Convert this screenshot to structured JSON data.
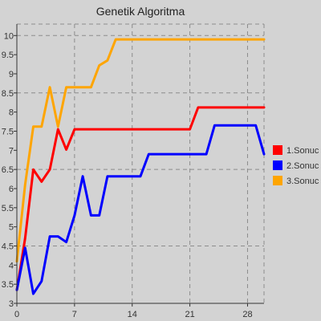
{
  "chart_data": {
    "type": "line",
    "title": "Genetik Algoritma",
    "xlabel": "",
    "ylabel": "",
    "xlim": [
      0,
      30
    ],
    "ylim": [
      3,
      10.3
    ],
    "x_ticks": [
      0,
      7,
      14,
      21,
      28
    ],
    "y_ticks": [
      3,
      3.5,
      4,
      4.5,
      5,
      5.5,
      6,
      6.5,
      7,
      7.5,
      8,
      8.5,
      9,
      9.5,
      10
    ],
    "y_tick_labels": [
      "3",
      "3.5",
      "4",
      "4.5",
      "5",
      "5.5",
      "6",
      "6.5",
      "7",
      "7.5",
      "8",
      "8.5",
      "9",
      "9.5",
      "10"
    ],
    "grid": true,
    "legend_position": "right",
    "series": [
      {
        "name": "1.Sonuc",
        "color": "#ff0000",
        "points": [
          [
            0,
            3.35
          ],
          [
            1,
            4.7
          ],
          [
            2,
            6.5
          ],
          [
            3,
            6.18
          ],
          [
            4,
            6.5
          ],
          [
            5,
            7.55
          ],
          [
            6,
            7.02
          ],
          [
            7,
            7.55
          ],
          [
            21,
            7.55
          ],
          [
            22,
            8.12
          ],
          [
            30,
            8.12
          ]
        ]
      },
      {
        "name": "2.Sonuc",
        "color": "#0000ff",
        "points": [
          [
            0,
            3.35
          ],
          [
            1,
            4.45
          ],
          [
            2,
            3.25
          ],
          [
            3,
            3.58
          ],
          [
            4,
            4.75
          ],
          [
            5,
            4.75
          ],
          [
            6,
            4.6
          ],
          [
            7,
            5.3
          ],
          [
            8,
            6.32
          ],
          [
            9,
            5.3
          ],
          [
            10,
            5.3
          ],
          [
            11,
            6.32
          ],
          [
            15,
            6.32
          ],
          [
            16,
            6.9
          ],
          [
            23,
            6.9
          ],
          [
            24,
            7.65
          ],
          [
            29,
            7.65
          ],
          [
            30,
            6.9
          ]
        ]
      },
      {
        "name": "3.Sonuc",
        "color": "#ffa500",
        "points": [
          [
            0,
            4.1
          ],
          [
            1,
            6.1
          ],
          [
            2,
            7.62
          ],
          [
            3,
            7.62
          ],
          [
            4,
            8.65
          ],
          [
            5,
            7.62
          ],
          [
            6,
            8.65
          ],
          [
            9,
            8.65
          ],
          [
            10,
            9.22
          ],
          [
            11,
            9.35
          ],
          [
            12,
            9.9
          ],
          [
            30,
            9.9
          ]
        ]
      }
    ]
  }
}
